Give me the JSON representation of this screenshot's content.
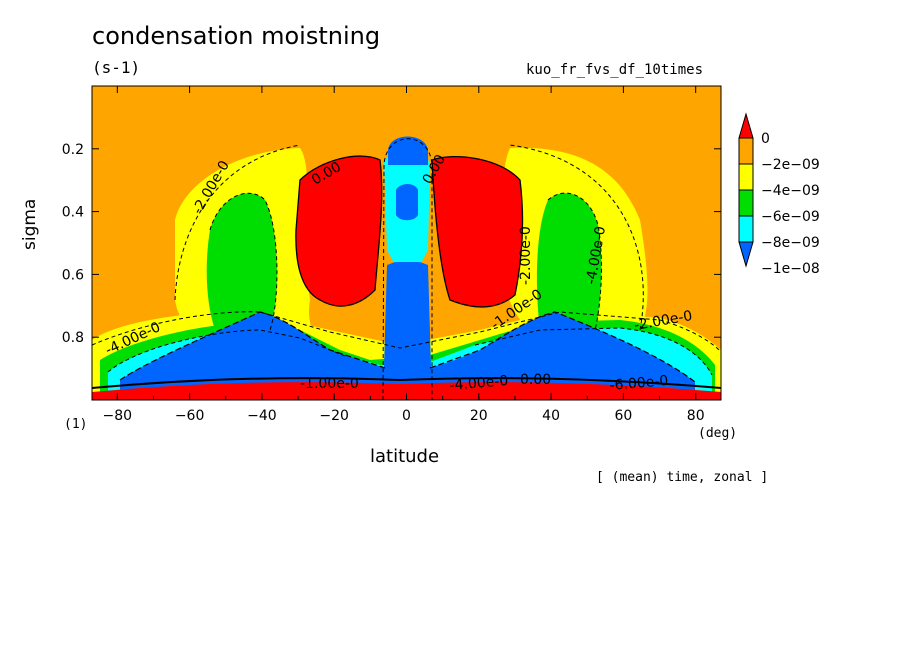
{
  "chart_data": {
    "type": "heatmap",
    "title": "condensation moistning",
    "units": "(s-1)",
    "run_name": "kuo_fr_fvs_df_10times",
    "xlabel": "latitude",
    "x_unit": "(deg)",
    "ylabel": "sigma",
    "y_unit": "(1)",
    "footer": "[ (mean) time, zonal ]",
    "xlim": [
      -87,
      87
    ],
    "ylim": [
      0.0,
      1.0
    ],
    "y_inverted": true,
    "x_ticks": [
      -80,
      -60,
      -40,
      -20,
      0,
      20,
      40,
      60,
      80
    ],
    "y_ticks": [
      0.2,
      0.4,
      0.6,
      0.8
    ],
    "legend": {
      "placement": "right",
      "labels": [
        "0",
        "-2e-09",
        "-4e-09",
        "-6e-09",
        "-8e-09",
        "-1e-08"
      ],
      "colors": [
        "#ff0000",
        "#ffa500",
        "#ffff00",
        "#00dd00",
        "#00ffff",
        "#0066ff"
      ]
    },
    "contour_labels": [
      "0.00",
      "0.00",
      "-2.00e-0",
      "-2.00e-0",
      "-4.00e-0",
      "-4.00e-0",
      "-1.00e-0",
      "-1.00e-0",
      "-2.00e-0",
      "-6.00e-0",
      "-4.00e-0",
      "0.00"
    ]
  }
}
